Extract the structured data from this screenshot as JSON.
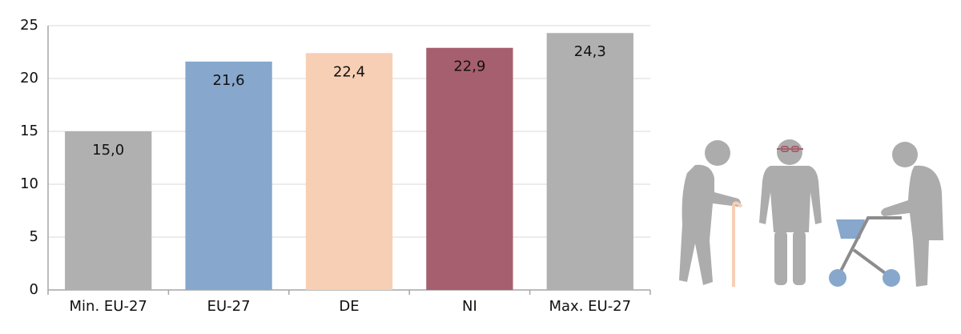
{
  "chart_data": {
    "type": "bar",
    "categories": [
      "Min. EU-27",
      "EU-27",
      "DE",
      "NI",
      "Max. EU-27"
    ],
    "values": [
      15.0,
      21.6,
      22.4,
      22.9,
      24.3
    ],
    "value_labels": [
      "15,0",
      "21,6",
      "22,4",
      "22,9",
      "24,3"
    ],
    "colors": [
      "#b0b0b0",
      "#87a7cc",
      "#f7cfb4",
      "#a65f6e",
      "#b0b0b0"
    ],
    "ylim": [
      0,
      25
    ],
    "yticks": [
      0,
      5,
      10,
      15,
      20,
      25
    ],
    "grid": true
  }
}
